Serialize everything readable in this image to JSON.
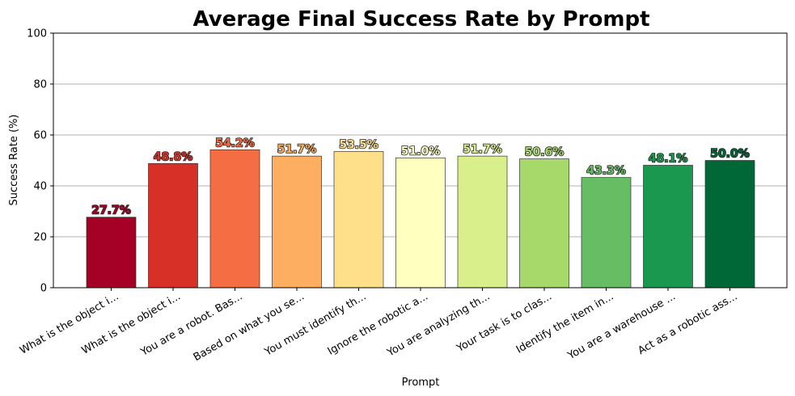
{
  "chart_data": {
    "type": "bar",
    "title": "Average Final Success Rate by Prompt",
    "xlabel": "Prompt",
    "ylabel": "Success Rate (%)",
    "ylim": [
      0,
      100
    ],
    "yticks": [
      0,
      20,
      40,
      60,
      80,
      100
    ],
    "grid": "y",
    "categories": [
      "What is the object i...",
      "What is the object i...",
      "You are a robot. Bas...",
      "Based on what you se...",
      "You must identify th...",
      "Ignore the robotic a...",
      "You are analyzing th...",
      "Your task is to clas...",
      "Identify the item in...",
      "You are a warehouse ...",
      "Act as a robotic ass..."
    ],
    "values": [
      27.7,
      48.8,
      54.2,
      51.7,
      53.5,
      51.0,
      51.7,
      50.6,
      43.3,
      48.1,
      50.0
    ],
    "value_labels": [
      "27.7%",
      "48.8%",
      "54.2%",
      "51.7%",
      "53.5%",
      "51.0%",
      "51.7%",
      "50.6%",
      "43.3%",
      "48.1%",
      "50.0%"
    ],
    "colors": [
      "#a50026",
      "#d73027",
      "#f46d43",
      "#fdae61",
      "#fee08b",
      "#ffffbf",
      "#d9ef8b",
      "#a6d96a",
      "#66bd63",
      "#1a9850",
      "#006837"
    ]
  }
}
